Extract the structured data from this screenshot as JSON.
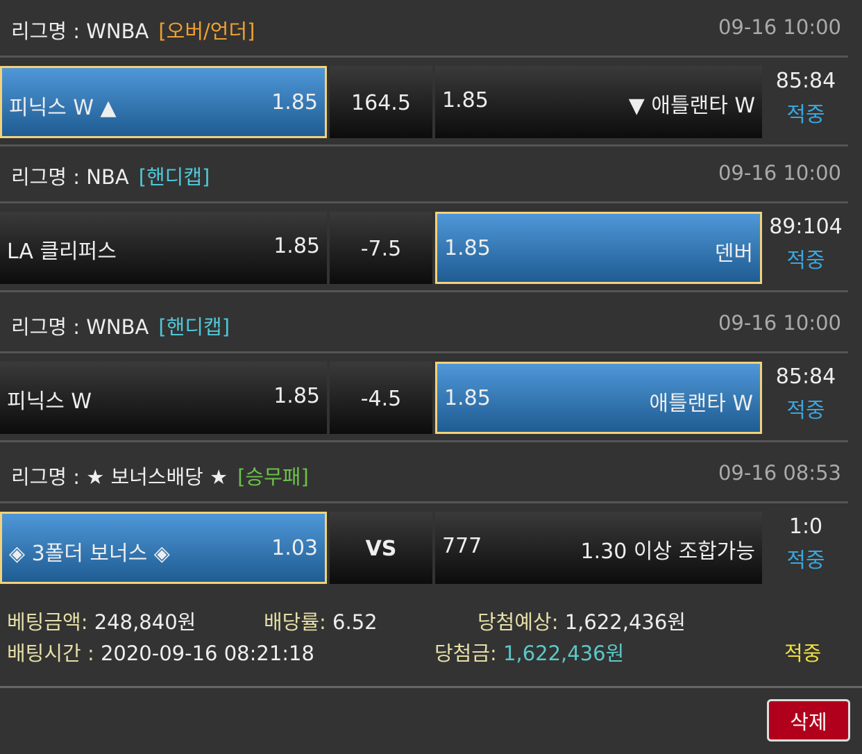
{
  "bets": [
    {
      "league": "리그명 : WNBA",
      "tag": "[오버/언더]",
      "tag_color": "#f0a030",
      "date": "09-16 10:00",
      "home": "피닉스 W ▲",
      "home_odds": "1.85",
      "mid": "164.5",
      "away_odds": "1.85",
      "away": "▼ 애틀랜타 W",
      "score": "85:84",
      "result": "적중",
      "selected": "home"
    },
    {
      "league": "리그명 : NBA",
      "tag": "[핸디캡]",
      "tag_color": "#4fc8d8",
      "date": "09-16 10:00",
      "home": "LA 클리퍼스",
      "home_odds": "1.85",
      "mid": "-7.5",
      "away_odds": "1.85",
      "away": "덴버",
      "score": "89:104",
      "result": "적중",
      "selected": "away"
    },
    {
      "league": "리그명 : WNBA",
      "tag": "[핸디캡]",
      "tag_color": "#4fc8d8",
      "date": "09-16 10:00",
      "home": "피닉스 W",
      "home_odds": "1.85",
      "mid": "-4.5",
      "away_odds": "1.85",
      "away": "애틀랜타 W",
      "score": "85:84",
      "result": "적중",
      "selected": "away"
    },
    {
      "league": "리그명 : ★ 보너스배당 ★",
      "tag": "[승무패]",
      "tag_color": "#6cc24a",
      "date": "09-16 08:53",
      "home": "◈ 3폴더 보너스 ◈",
      "home_odds": "1.03",
      "mid": "VS",
      "away_odds": "777",
      "away": "1.30 이상 조합가능",
      "score": "1:0",
      "result": "적중",
      "selected": "home"
    }
  ],
  "summary": {
    "amount_label": "베팅금액:",
    "amount": "248,840원",
    "rate_label": "배당률:",
    "rate": "6.52",
    "expected_label": "당첨예상:",
    "expected": "1,622,436원",
    "time_label": "배팅시간 :",
    "time": "2020-09-16 08:21:18",
    "win_label": "당첨금:",
    "win": "1,622,436원",
    "result": "적중"
  },
  "delete_label": "삭제"
}
